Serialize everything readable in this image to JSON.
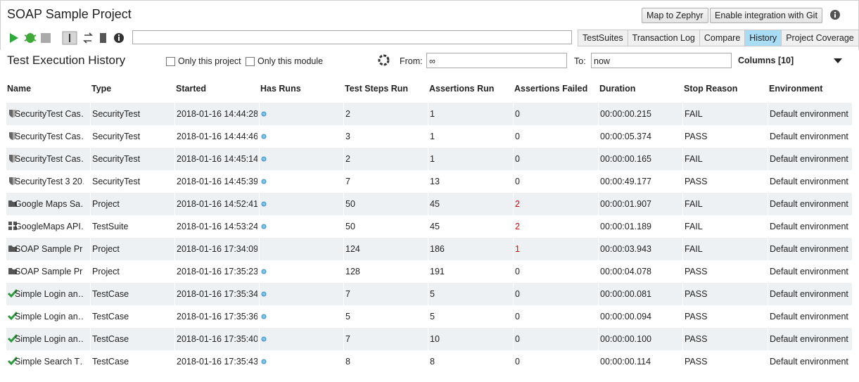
{
  "header": {
    "title": "SOAP Sample Project",
    "buttons": [
      "Map to Zephyr",
      "Enable integration with Git"
    ]
  },
  "tabs": [
    "TestSuites",
    "Transaction Log",
    "Compare",
    "History",
    "Project Coverage"
  ],
  "history": {
    "title": "Test Execution History",
    "filters": [
      "Only this project",
      "Only this module"
    ],
    "from_label": "From:",
    "from_value": "∞",
    "to_label": "To:",
    "to_value": "now",
    "columns_label": "Columns [10]"
  },
  "table": {
    "columns": [
      "Name",
      "Type",
      "Started",
      "Has Runs",
      "Test Steps Run",
      "Assertions Run",
      "Assertions Failed",
      "Duration",
      "Stop Reason",
      "Environment"
    ],
    "rows": [
      {
        "icon": "shield",
        "has_runs": true,
        "cells": [
          "SecurityTest Cas…",
          "SecurityTest",
          "2018-01-16 14:44:28",
          2,
          1,
          0,
          "00:00:00.215",
          "FAIL",
          "Default environment"
        ]
      },
      {
        "icon": "shield",
        "has_runs": true,
        "cells": [
          "SecurityTest Cas…",
          "SecurityTest",
          "2018-01-16 14:44:46",
          3,
          1,
          0,
          "00:00:05.374",
          "PASS",
          "Default environment"
        ]
      },
      {
        "icon": "shield",
        "has_runs": true,
        "cells": [
          "SecurityTest Cas…",
          "SecurityTest",
          "2018-01-16 14:45:14",
          2,
          1,
          0,
          "00:00:00.165",
          "FAIL",
          "Default environment"
        ]
      },
      {
        "icon": "shield",
        "has_runs": true,
        "cells": [
          "SecurityTest 3 20…",
          "SecurityTest",
          "2018-01-16 14:45:39",
          7,
          13,
          0,
          "00:00:49.177",
          "PASS",
          "Default environment"
        ]
      },
      {
        "icon": "folder",
        "has_runs": true,
        "cells": [
          "Google Maps Sa…",
          "Project",
          "2018-01-16 14:52:41",
          50,
          45,
          2,
          "00:00:01.907",
          "FAIL",
          "Default environment"
        ]
      },
      {
        "icon": "suite",
        "has_runs": true,
        "cells": [
          "GoogleMaps API…",
          "TestSuite",
          "2018-01-16 14:53:24",
          50,
          45,
          2,
          "00:00:01.189",
          "FAIL",
          "Default environment"
        ]
      },
      {
        "icon": "folder",
        "has_runs": false,
        "cells": [
          "SOAP Sample Pr…",
          "Project",
          "2018-01-16 17:34:09",
          124,
          186,
          1,
          "00:00:03.943",
          "FAIL",
          "Default environment"
        ]
      },
      {
        "icon": "folder",
        "has_runs": true,
        "cells": [
          "SOAP Sample Pr…",
          "Project",
          "2018-01-16 17:35:23",
          128,
          191,
          0,
          "00:00:04.078",
          "PASS",
          "Default environment"
        ]
      },
      {
        "icon": "check",
        "has_runs": true,
        "cells": [
          "Simple Login an…",
          "TestCase",
          "2018-01-16 17:35:34",
          7,
          5,
          0,
          "00:00:00.081",
          "PASS",
          "Default environment"
        ]
      },
      {
        "icon": "check",
        "has_runs": true,
        "cells": [
          "Simple Login an…",
          "TestCase",
          "2018-01-16 17:35:36",
          5,
          5,
          0,
          "00:00:00.094",
          "PASS",
          "Default environment"
        ]
      },
      {
        "icon": "check",
        "has_runs": true,
        "cells": [
          "Simple Login an…",
          "TestCase",
          "2018-01-16 17:35:40",
          7,
          10,
          0,
          "00:00:00.100",
          "PASS",
          "Default environment"
        ]
      },
      {
        "icon": "check",
        "has_runs": true,
        "cells": [
          "Simple Search T…",
          "TestCase",
          "2018-01-16 17:35:43",
          8,
          8,
          0,
          "00:00:00.114",
          "PASS",
          "Default environment"
        ]
      }
    ]
  }
}
